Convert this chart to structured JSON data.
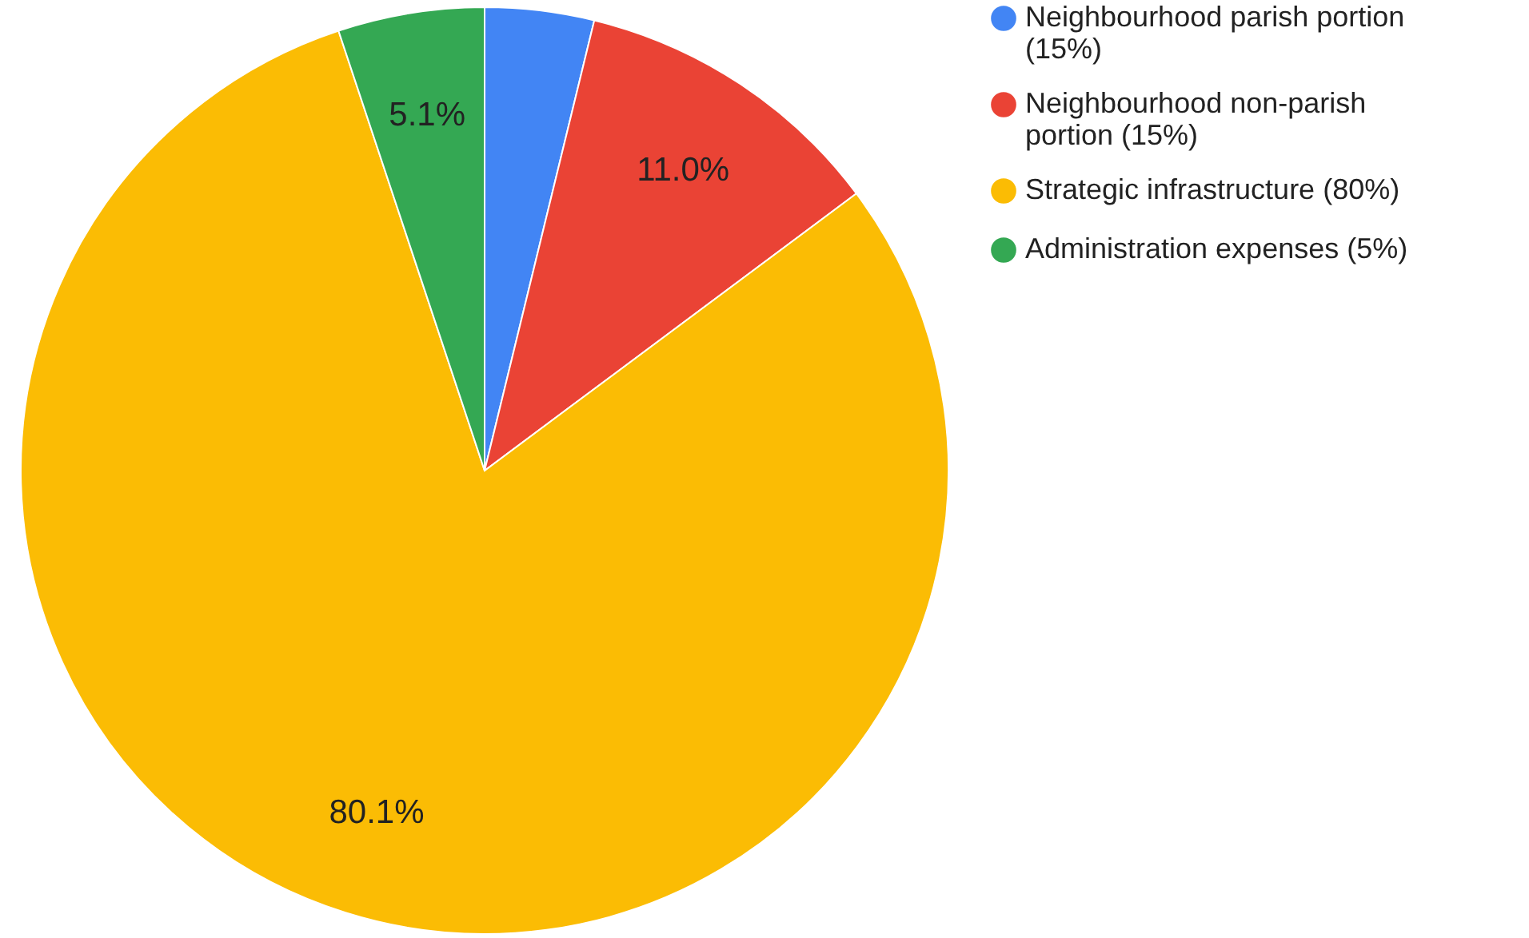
{
  "chart_data": {
    "type": "pie",
    "categories": [
      "Neighbourhood parish portion (15%)",
      "Neighbourhood non-parish portion (15%)",
      "Strategic infrastructure (80%)",
      "Administration expenses (5%)"
    ],
    "values": [
      3.8,
      11.0,
      80.1,
      5.1
    ],
    "colors": [
      "#4285f4",
      "#ea4335",
      "#fbbc04",
      "#34a853"
    ],
    "value_labels": [
      null,
      "11.0%",
      "80.1%",
      "5.1%"
    ],
    "legend": "top right"
  }
}
